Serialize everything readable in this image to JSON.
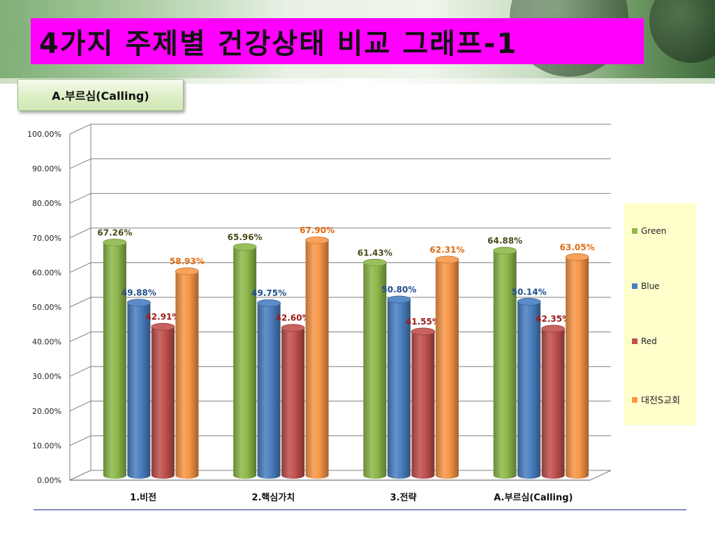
{
  "slide": {
    "title": "4가지 주제별 건강상태 비교 그래프-1",
    "subtitle": "A.부르심(Calling)"
  },
  "colors": {
    "title_bg": "#ff00ff",
    "green": "#8db84a",
    "blue": "#4a7fc1",
    "red": "#c0504d",
    "orange": "#f79646",
    "legend_bg": "#ffffcc",
    "rule": "#1f2a8c"
  },
  "chart_data": {
    "type": "bar",
    "categories": [
      "1.비전",
      "2.핵심가치",
      "3.전략",
      "A.부르심(Calling)"
    ],
    "series": [
      {
        "name": "Green",
        "values": [
          67.26,
          65.96,
          61.43,
          64.88
        ],
        "labels": [
          "67.26%",
          "65.96%",
          "61.43%",
          "64.88%"
        ],
        "color": "#8db84a",
        "label_color": "#4a4a1a"
      },
      {
        "name": "Blue",
        "values": [
          49.88,
          49.75,
          50.8,
          50.14
        ],
        "labels": [
          "49.88%",
          "49.75%",
          "50.80%",
          "50.14%"
        ],
        "color": "#4a7fc1",
        "label_color": "#1f4e8c"
      },
      {
        "name": "Red",
        "values": [
          42.91,
          42.6,
          41.55,
          42.35
        ],
        "labels": [
          "42.91%",
          "42.60%",
          "41.55%",
          "42.35%"
        ],
        "color": "#c0504d",
        "label_color": "#9a1c1c"
      },
      {
        "name": "대전S교회",
        "values": [
          58.93,
          67.9,
          62.31,
          63.05
        ],
        "labels": [
          "58.93%",
          "67.90%",
          "62.31%",
          "63.05%"
        ],
        "color": "#f79646",
        "label_color": "#e06a10"
      }
    ],
    "ylim": [
      0,
      100
    ],
    "yticks": [
      "0.00%",
      "10.00%",
      "20.00%",
      "30.00%",
      "40.00%",
      "50.00%",
      "60.00%",
      "70.00%",
      "80.00%",
      "90.00%",
      "100.00%"
    ],
    "grid": true,
    "legend_position": "right",
    "style": "3d-cylinder"
  }
}
